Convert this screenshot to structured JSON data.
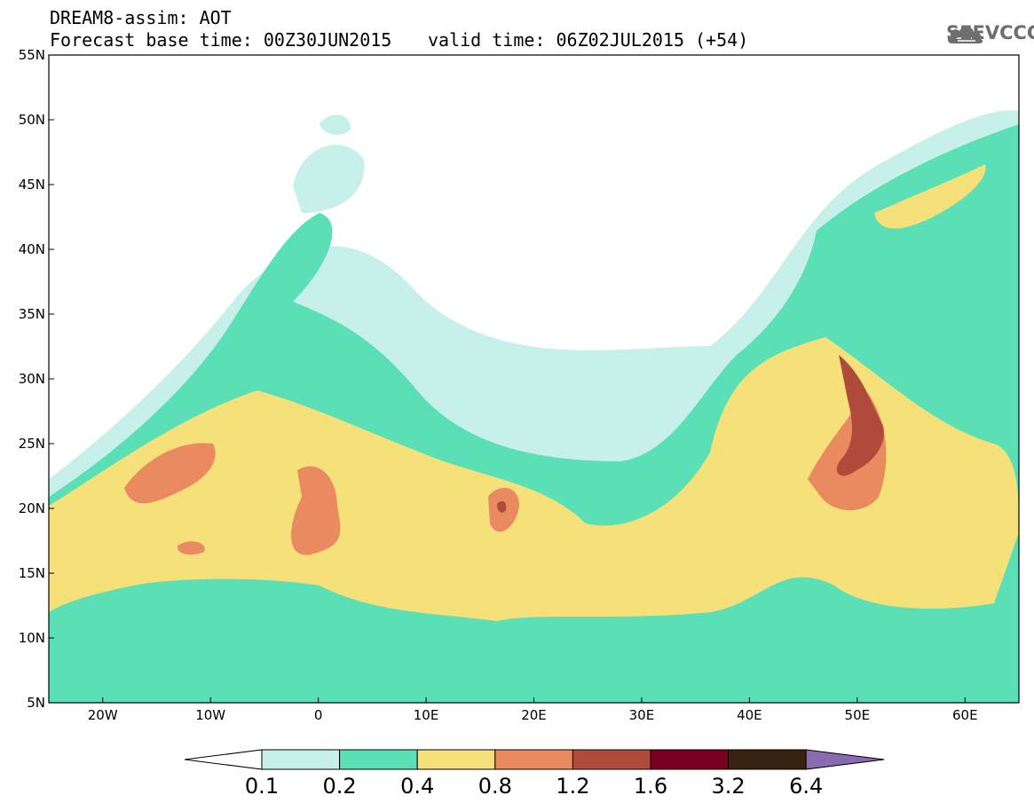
{
  "header": {
    "line1": "DREAM8-assim: AOT",
    "line2": "Forecast base time: 00Z30JUN2015",
    "valid": "valid time: 06Z02JUL2015 (+54)"
  },
  "logo": {
    "text": "SEEVCCC",
    "icon": "cloud-icon",
    "color": "#6e6e6e"
  },
  "map": {
    "lon_range": [
      -25,
      65
    ],
    "lat_range": [
      5,
      55
    ],
    "lon_ticks": [
      "20W",
      "10W",
      "0",
      "10E",
      "20E",
      "30E",
      "40E",
      "50E",
      "60E"
    ],
    "lat_ticks": [
      "5N",
      "10N",
      "15N",
      "20N",
      "25N",
      "30N",
      "35N",
      "40N",
      "45N",
      "50N",
      "55N"
    ]
  },
  "colorbar": {
    "labels": [
      "0.1",
      "0.2",
      "0.4",
      "0.8",
      "1.2",
      "1.6",
      "3.2",
      "6.4"
    ],
    "colors": [
      "#ffffff",
      "#c8f0ea",
      "#5bdfb6",
      "#f5e07a",
      "#e98a60",
      "#b04b3c",
      "#7a0020",
      "#3a2210",
      "#8a6ab0"
    ]
  }
}
